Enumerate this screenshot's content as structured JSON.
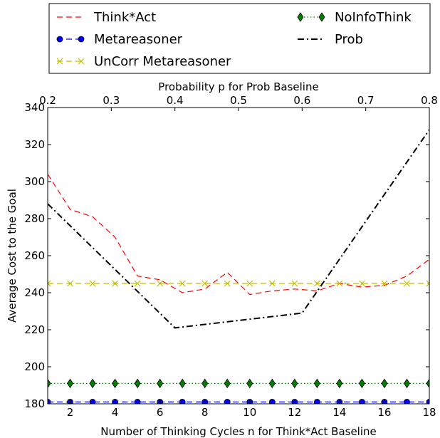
{
  "chart_data": {
    "type": "line",
    "xlabel": "Number of Thinking Cycles n for Think*Act Baseline",
    "x2label": "Probability p for Prob Baseline",
    "ylabel": "Average Cost to the Goal",
    "xlim": [
      1,
      18
    ],
    "x2lim": [
      0.2,
      0.8
    ],
    "ylim": [
      180,
      340
    ],
    "xticks": [
      2,
      4,
      6,
      8,
      10,
      12,
      14,
      16,
      18
    ],
    "x2ticks": [
      0.2,
      0.3,
      0.4,
      0.5,
      0.6,
      0.7,
      0.8
    ],
    "yticks": [
      180,
      200,
      220,
      240,
      260,
      280,
      300,
      320,
      340
    ],
    "grid": false,
    "legend_position": "top, above plot",
    "series": [
      {
        "name": "Think*Act",
        "color": "#ff0000",
        "linestyle": "dashed",
        "marker": "none",
        "axis": "bottom",
        "x": [
          1,
          2,
          3,
          4,
          5,
          6,
          7,
          8,
          9,
          10,
          11,
          12,
          13,
          14,
          15,
          16,
          17,
          18
        ],
        "y": [
          304,
          285,
          281,
          270,
          249,
          247,
          240,
          242,
          251,
          239,
          241,
          242,
          241,
          245,
          243,
          244,
          249,
          258
        ]
      },
      {
        "name": "Metareasoner",
        "color": "#0000ff",
        "linestyle": "dashed",
        "marker": "circle",
        "axis": "bottom",
        "x": [
          1,
          2,
          3,
          4,
          5,
          6,
          7,
          8,
          9,
          10,
          11,
          12,
          13,
          14,
          15,
          16,
          17,
          18
        ],
        "y": [
          181,
          181,
          181,
          181,
          181,
          181,
          181,
          181,
          181,
          181,
          181,
          181,
          181,
          181,
          181,
          181,
          181,
          181
        ]
      },
      {
        "name": "UnCorr Metareasoner",
        "color": "#bfbf00",
        "linestyle": "dashed",
        "marker": "x",
        "axis": "bottom",
        "x": [
          1,
          2,
          3,
          4,
          5,
          6,
          7,
          8,
          9,
          10,
          11,
          12,
          13,
          14,
          15,
          16,
          17,
          18
        ],
        "y": [
          245,
          245,
          245,
          245,
          245,
          245,
          245,
          245,
          245,
          245,
          245,
          245,
          245,
          245,
          245,
          245,
          245,
          245
        ]
      },
      {
        "name": "NoInfoThink",
        "color": "#008000",
        "linestyle": "dotted",
        "marker": "diamond",
        "axis": "bottom",
        "x": [
          1,
          2,
          3,
          4,
          5,
          6,
          7,
          8,
          9,
          10,
          11,
          12,
          13,
          14,
          15,
          16,
          17,
          18
        ],
        "y": [
          191,
          191,
          191,
          191,
          191,
          191,
          191,
          191,
          191,
          191,
          191,
          191,
          191,
          191,
          191,
          191,
          191,
          191
        ]
      },
      {
        "name": "Prob",
        "color": "#000000",
        "linestyle": "dashdot",
        "marker": "none",
        "axis": "top",
        "x": [
          0.2,
          0.4,
          0.6,
          0.8
        ],
        "y": [
          288,
          221,
          229,
          328
        ]
      }
    ]
  }
}
